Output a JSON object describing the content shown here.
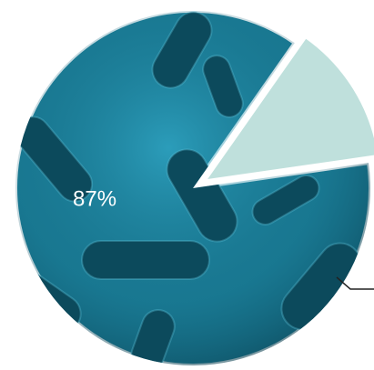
{
  "chart_data": {
    "type": "pie",
    "values": [
      87,
      13
    ],
    "value_labels": [
      "87%",
      null
    ],
    "colors": [
      "#1b7e98",
      "#bfe0dc"
    ]
  }
}
